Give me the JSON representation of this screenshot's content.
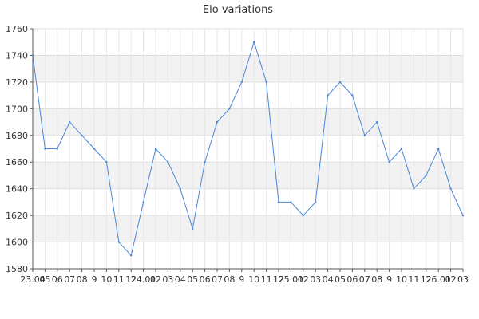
{
  "chart_data": {
    "type": "line",
    "title": "Elo variations",
    "xlabel": "",
    "ylabel": "",
    "ylim": [
      1580,
      1760
    ],
    "yticks": [
      1580,
      1600,
      1620,
      1640,
      1660,
      1680,
      1700,
      1720,
      1740,
      1760
    ],
    "x_tick_labels": [
      "23.04",
      "05",
      "06",
      "07",
      "08",
      "9",
      "10",
      "11",
      "12",
      "24.01",
      "02",
      "03",
      "04",
      "05",
      "06",
      "07",
      "08",
      "9",
      "10",
      "11",
      "12",
      "25.01",
      "02",
      "03",
      "04",
      "05",
      "06",
      "07",
      "08",
      "9",
      "10",
      "11",
      "12",
      "26.01",
      "02",
      "03"
    ],
    "series": [
      {
        "color": "#4a86d8",
        "values": [
          1740,
          1670,
          1670,
          1690,
          1680,
          1670,
          1660,
          1600,
          1590,
          1630,
          1670,
          1660,
          1640,
          1610,
          1660,
          1690,
          1700,
          1720,
          1750,
          1720,
          1630,
          1630,
          1620,
          1630,
          1710,
          1720,
          1710,
          1680,
          1690,
          1660,
          1670,
          1640,
          1650,
          1670,
          1640,
          1620
        ]
      }
    ],
    "grid": true,
    "band_color": "#f2f2f2",
    "legend": "none"
  }
}
